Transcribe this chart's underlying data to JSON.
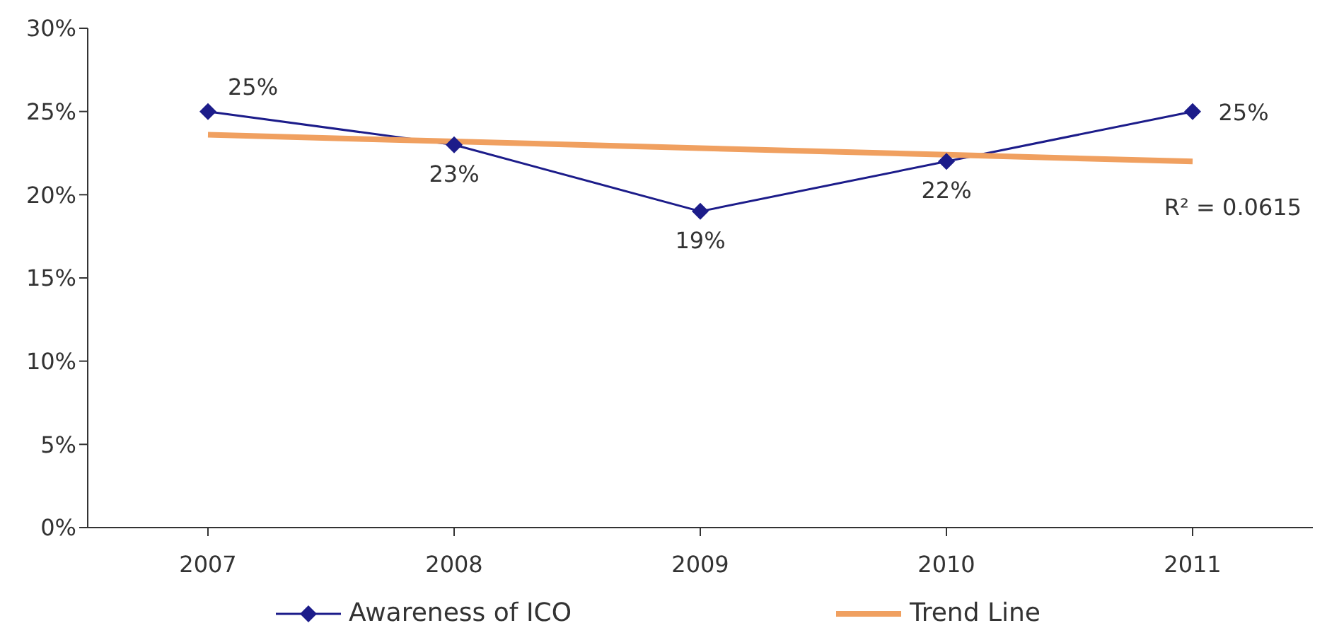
{
  "chart_data": {
    "type": "line",
    "categories": [
      "2007",
      "2008",
      "2009",
      "2010",
      "2011"
    ],
    "series": [
      {
        "name": "Awareness of ICO",
        "color": "#1c1c8a",
        "values": [
          25,
          23,
          19,
          22,
          25
        ],
        "marker": "diamond",
        "value_labels": [
          "25%",
          "23%",
          "19%",
          "22%",
          "25%"
        ]
      },
      {
        "name": "Trend Line",
        "color": "#f0a060",
        "values": [
          23.6,
          23.2,
          22.8,
          22.4,
          22.0
        ],
        "marker": "none"
      }
    ],
    "ylim": [
      0,
      30
    ],
    "yticks": [
      {
        "value": 0,
        "label": "0%"
      },
      {
        "value": 5,
        "label": "5%"
      },
      {
        "value": 10,
        "label": "10%"
      },
      {
        "value": 15,
        "label": "15%"
      },
      {
        "value": 20,
        "label": "20%"
      },
      {
        "value": 25,
        "label": "25%"
      },
      {
        "value": 30,
        "label": "30%"
      }
    ],
    "annotations": [
      "R² = 0.0615"
    ],
    "grid": false,
    "legend": "bottom"
  }
}
